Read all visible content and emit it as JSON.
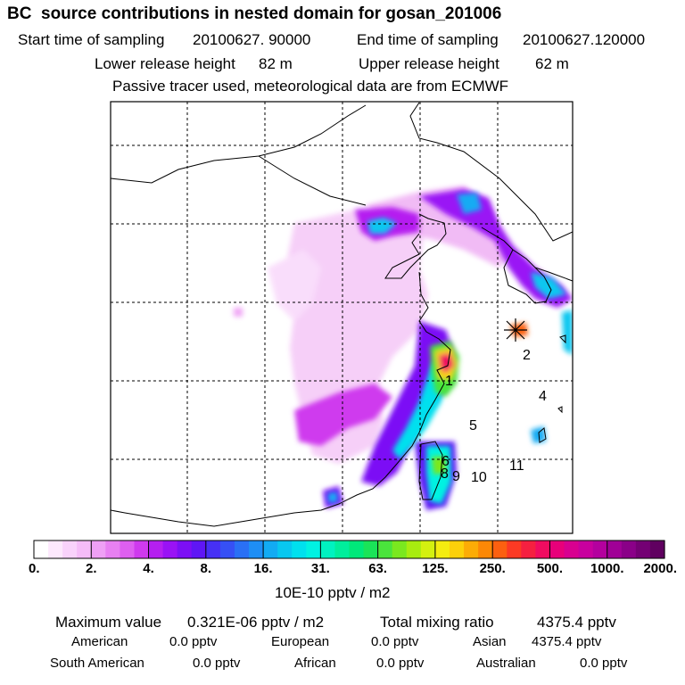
{
  "header": {
    "title": "BC  source contributions in nested domain for gosan_201006",
    "start_label": "Start time of sampling",
    "start_value": "20100627. 90000",
    "end_label": "End time of sampling",
    "end_value": "20100627.120000",
    "lower_label": "Lower release height",
    "lower_value": "82 m",
    "upper_label": "Upper release height",
    "upper_value": "62 m",
    "note": "Passive tracer used, meteorological data are from ECMWF"
  },
  "chart_data": {
    "type": "heatmap",
    "description_units": "10E-10 pptv / m2",
    "colorbar": {
      "tick_labels": [
        "0.",
        "2.",
        "4.",
        "8.",
        "16.",
        "31.",
        "63.",
        "125.",
        "250.",
        "500.",
        "1000.",
        "2000."
      ],
      "tick_values": [
        0,
        2,
        4,
        8,
        16,
        31,
        63,
        125,
        250,
        500,
        1000,
        2000
      ],
      "colors": [
        "#ffffff",
        "#fde8fd",
        "#f9d2fb",
        "#f5bcf8",
        "#efa0f5",
        "#e880f2",
        "#de5ff0",
        "#cf3aee",
        "#b51ff0",
        "#9a12f5",
        "#7c0ff5",
        "#5f16f5",
        "#4630f5",
        "#3650f5",
        "#2a70f5",
        "#1e8ef5",
        "#12abf3",
        "#08c7f0",
        "#00e0ee",
        "#00f2e2",
        "#00f2c0",
        "#00ee9c",
        "#00e87a",
        "#1ae458",
        "#4ae43c",
        "#7ae81f",
        "#a8ec10",
        "#d4f010",
        "#f4ec10",
        "#fcd00a",
        "#fcac06",
        "#fc8806",
        "#fc6010",
        "#fc3a24",
        "#f52040",
        "#f00c60",
        "#e8007a",
        "#d80090",
        "#c8009e",
        "#b4009e",
        "#a00096",
        "#8a0088",
        "#740074",
        "#600060"
      ]
    },
    "receptor_labels": [
      "1",
      "2",
      "4",
      "5",
      "6",
      "8",
      "9",
      "10",
      "11"
    ],
    "maximum_label": "Maximum value",
    "maximum_value": "0.321E-06 pptv / m2",
    "total_label": "Total mixing ratio",
    "total_value": "4375.4 pptv",
    "sources": [
      {
        "name": "American",
        "value": "0.0 pptv"
      },
      {
        "name": "European",
        "value": "0.0 pptv"
      },
      {
        "name": "Asian",
        "value": "4375.4 pptv"
      },
      {
        "name": "South American",
        "value": "0.0 pptv"
      },
      {
        "name": "African",
        "value": "0.0 pptv"
      },
      {
        "name": "Australian",
        "value": "0.0 pptv"
      }
    ]
  }
}
